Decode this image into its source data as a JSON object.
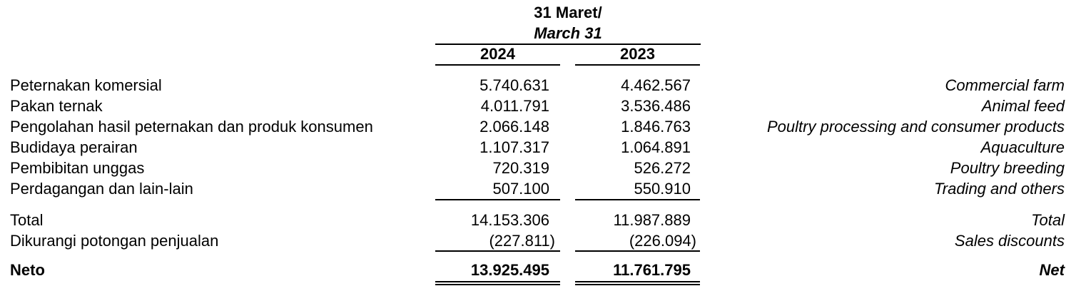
{
  "header": {
    "period_id": "31 Maret/",
    "period_en": "March 31",
    "years": [
      "2024",
      "2023"
    ]
  },
  "rows": [
    {
      "label": "Peternakan komersial",
      "v2024": "5.740.631",
      "v2023": "4.462.567",
      "label_en": "Commercial farm"
    },
    {
      "label": "Pakan ternak",
      "v2024": "4.011.791",
      "v2023": "3.536.486",
      "label_en": "Animal feed"
    },
    {
      "label": "Pengolahan hasil peternakan dan produk konsumen",
      "v2024": "2.066.148",
      "v2023": "1.846.763",
      "label_en": "Poultry processing and consumer products"
    },
    {
      "label": "Budidaya perairan",
      "v2024": "1.107.317",
      "v2023": "1.064.891",
      "label_en": "Aquaculture"
    },
    {
      "label": "Pembibitan unggas",
      "v2024": "720.319",
      "v2023": "526.272",
      "label_en": "Poultry breeding"
    },
    {
      "label": "Perdagangan dan lain-lain",
      "v2024": "507.100",
      "v2023": "550.910",
      "label_en": "Trading and others"
    }
  ],
  "total": {
    "label": "Total",
    "v2024": "14.153.306",
    "v2023": "11.987.889",
    "label_en": "Total"
  },
  "discount": {
    "label": "Dikurangi potongan penjualan",
    "v2024": "(227.811)",
    "v2023": "(226.094)",
    "label_en": "Sales discounts"
  },
  "net": {
    "label": "Neto",
    "v2024": "13.925.495",
    "v2023": "11.761.795",
    "label_en": "Net"
  }
}
